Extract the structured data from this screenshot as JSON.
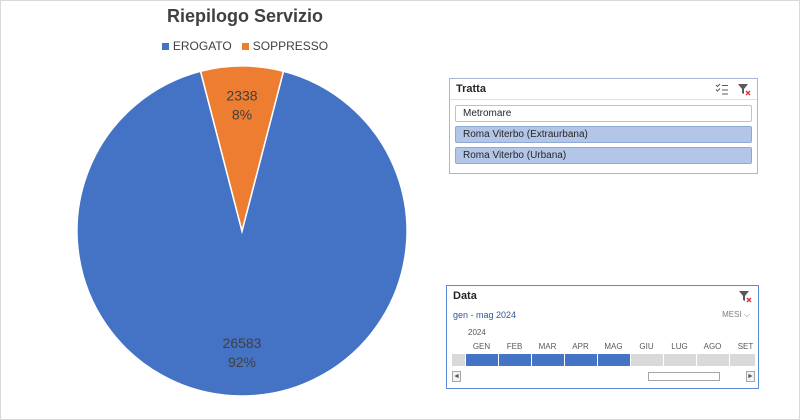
{
  "chart_data": {
    "type": "pie",
    "title": "Riepilogo Servizio",
    "legend": "top",
    "slices": [
      {
        "label": "EROGATO",
        "value": 26583,
        "percent_label": "92%",
        "color": "#4472c4"
      },
      {
        "label": "SOPPRESSO",
        "value": 2338,
        "percent_label": "8%",
        "color": "#ed7d31"
      }
    ]
  },
  "slicers": {
    "tratta": {
      "title": "Tratta",
      "multi_select_icon": "multi-select-icon",
      "clear_filter_icon": "clear-filter-icon",
      "items": [
        {
          "label": "Metromare",
          "selected": false
        },
        {
          "label": "Roma Viterbo (Extraurbana)",
          "selected": true
        },
        {
          "label": "Roma Viterbo (Urbana)",
          "selected": true
        }
      ]
    },
    "data": {
      "title": "Data",
      "clear_filter_icon": "clear-filter-icon",
      "range_label": "gen - mag 2024",
      "level_label": "MESI",
      "year": "2024",
      "months": [
        {
          "label": "GEN",
          "selected": true
        },
        {
          "label": "FEB",
          "selected": true
        },
        {
          "label": "MAR",
          "selected": true
        },
        {
          "label": "APR",
          "selected": true
        },
        {
          "label": "MAG",
          "selected": true
        },
        {
          "label": "GIU",
          "selected": false
        },
        {
          "label": "LUG",
          "selected": false
        },
        {
          "label": "AGO",
          "selected": false
        },
        {
          "label": "SET",
          "selected": false
        }
      ],
      "scroll_left_glyph": "◄",
      "scroll_right_glyph": "►"
    }
  }
}
